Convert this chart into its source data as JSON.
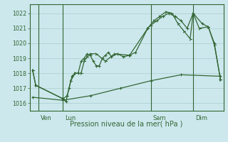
{
  "title": "Pression niveau de la mer( hPa )",
  "bg_color": "#cce8ed",
  "grid_color": "#aacccc",
  "line_color": "#336633",
  "border_color": "#336633",
  "ylim": [
    1015.5,
    1022.6
  ],
  "yticks": [
    1016,
    1017,
    1018,
    1019,
    1020,
    1021,
    1022
  ],
  "xlim": [
    0,
    32
  ],
  "day_positions": [
    2,
    6,
    20.5,
    27.5
  ],
  "day_vlines": [
    1.5,
    5.5,
    20.0,
    27.0
  ],
  "day_labels": [
    "Ven",
    "Lun",
    "Sam",
    "Dim"
  ],
  "series1_x": [
    0.5,
    1.0,
    5.5,
    6.0,
    6.5,
    7.0,
    7.5,
    8.0,
    8.5,
    9.0,
    9.5,
    10.0,
    10.5,
    11.0,
    11.5,
    12.0,
    12.5,
    13.0,
    13.5,
    14.5,
    15.5,
    16.5,
    17.5,
    19.5,
    20.0,
    21.0,
    22.0,
    23.0,
    24.0,
    25.0,
    26.0,
    27.0,
    28.5,
    29.5,
    30.5,
    31.5
  ],
  "series1_y": [
    1018.2,
    1017.2,
    1016.3,
    1016.1,
    1017.0,
    1017.8,
    1018.0,
    1018.0,
    1018.8,
    1019.0,
    1019.3,
    1019.2,
    1018.8,
    1018.5,
    1018.5,
    1019.0,
    1019.2,
    1019.4,
    1019.1,
    1019.3,
    1019.1,
    1019.2,
    1019.4,
    1021.0,
    1021.2,
    1021.5,
    1021.8,
    1022.0,
    1021.8,
    1021.5,
    1021.0,
    1022.0,
    1021.3,
    1021.1,
    1020.0,
    1017.6
  ],
  "series2_x": [
    0.5,
    1.0,
    5.5,
    6.2,
    6.8,
    7.5,
    8.5,
    9.0,
    9.5,
    10.0,
    11.0,
    12.5,
    14.0,
    16.5,
    19.5,
    20.5,
    21.5,
    22.5,
    23.5,
    24.5,
    25.5,
    26.5,
    27.0,
    28.0,
    29.5,
    30.5,
    31.5
  ],
  "series2_y": [
    1018.2,
    1017.2,
    1016.3,
    1016.5,
    1017.5,
    1018.0,
    1018.0,
    1018.8,
    1019.1,
    1019.3,
    1019.3,
    1018.8,
    1019.3,
    1019.2,
    1021.0,
    1021.5,
    1021.8,
    1022.1,
    1022.0,
    1021.3,
    1020.8,
    1020.3,
    1022.0,
    1021.0,
    1021.1,
    1019.9,
    1017.6
  ],
  "series3_x": [
    0.5,
    5.5,
    10.0,
    15.0,
    20.0,
    25.0,
    31.5
  ],
  "series3_y": [
    1016.4,
    1016.2,
    1016.5,
    1017.0,
    1017.5,
    1017.9,
    1017.8
  ]
}
